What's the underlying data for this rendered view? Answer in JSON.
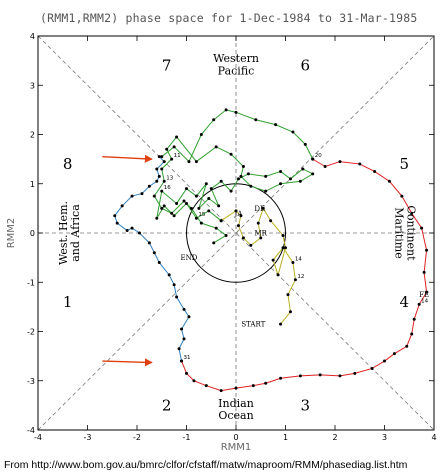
{
  "title": "(RMM1,RMM2) phase space for  1-Dec-1984 to 31-Mar-1985",
  "caption": "From http://www.bom.gov.au/bmrc/clfor/cfstaff/matw/maproom/RMM/phasediag.list.htm",
  "chart_data": {
    "type": "line",
    "xlabel": "RMM1",
    "ylabel": "RMM2",
    "xlim": [
      -4,
      4
    ],
    "ylim": [
      -4,
      4
    ],
    "xticks": [
      "-4",
      "-3",
      "-2",
      "-1",
      "0",
      "1",
      "2",
      "3",
      "4"
    ],
    "yticks": [
      "-4",
      "-3",
      "-2",
      "-1",
      "0",
      "1",
      "2",
      "3",
      "4"
    ],
    "unit_circle_radius": 1,
    "phases": [
      {
        "number": "1",
        "x": -3.4,
        "y": -1.4
      },
      {
        "number": "2",
        "x": -1.4,
        "y": -3.5
      },
      {
        "number": "3",
        "x": 1.4,
        "y": -3.5
      },
      {
        "number": "4",
        "x": 3.4,
        "y": -1.4
      },
      {
        "number": "5",
        "x": 3.4,
        "y": 1.4
      },
      {
        "number": "6",
        "x": 1.4,
        "y": 3.4
      },
      {
        "number": "7",
        "x": -1.4,
        "y": 3.4
      },
      {
        "number": "8",
        "x": -3.4,
        "y": 1.4
      }
    ],
    "regions": [
      {
        "name": "Western",
        "x": 0,
        "y": 3.55,
        "rotate": 0
      },
      {
        "name": "Pacific",
        "x": 0,
        "y": 3.3,
        "rotate": 0
      },
      {
        "name": "Indian",
        "x": 0,
        "y": -3.45,
        "rotate": 0
      },
      {
        "name": "Ocean",
        "x": 0,
        "y": -3.7,
        "rotate": 0
      },
      {
        "name": "West. Hem.",
        "x": -3.5,
        "y": 0,
        "rotate": -90
      },
      {
        "name": "and Africa",
        "x": -3.25,
        "y": 0,
        "rotate": -90
      },
      {
        "name": "Maritime",
        "x": 3.3,
        "y": 0,
        "rotate": 90
      },
      {
        "name": "Continent",
        "x": 3.55,
        "y": 0,
        "rotate": 90
      }
    ],
    "markers": [
      {
        "label": "START",
        "x": 0.35,
        "y": -1.9
      },
      {
        "label": "END",
        "x": -0.95,
        "y": -0.55
      }
    ],
    "month_labels": [
      {
        "label": "DE",
        "x": 0.48,
        "y": 0.45
      },
      {
        "label": "JA",
        "x": 0.05,
        "y": 0.35
      },
      {
        "label": "FE",
        "x": 3.8,
        "y": -1.3
      },
      {
        "label": "MR",
        "x": 0.5,
        "y": -0.05
      }
    ],
    "series": [
      {
        "color": "#b8b020",
        "x": [
          0.9,
          1.1,
          1.05,
          1.2,
          1.15,
          0.95,
          0.75,
          0.85,
          1.0,
          0.95,
          0.7,
          0.55,
          0.45,
          0.5,
          0.3,
          0.15,
          0.05,
          0.1,
          0.0,
          -0.3
        ],
        "y": [
          -1.85,
          -1.6,
          -1.25,
          -0.95,
          -0.6,
          -0.3,
          -0.55,
          -0.85,
          -0.3,
          -0.05,
          0.25,
          0.5,
          0.2,
          -0.1,
          -0.25,
          -0.1,
          0.15,
          0.35,
          0.45,
          0.25
        ],
        "labels": [
          "",
          "",
          "",
          "12",
          "14",
          "",
          "",
          "",
          "",
          "",
          "",
          "",
          "",
          "",
          "",
          "",
          "",
          "",
          "",
          ""
        ]
      },
      {
        "color": "#30a030",
        "x": [
          -0.3,
          -0.55,
          -0.8,
          -1.0,
          -1.25,
          -1.45,
          -1.6,
          -1.5,
          -1.2,
          -1.0,
          -0.8,
          -0.6,
          -0.75,
          -0.55,
          -0.35,
          -0.5,
          -0.3,
          -0.1,
          0.05,
          0.25,
          0.6,
          0.9,
          1.1,
          1.35,
          1.55,
          1.3,
          0.9,
          0.6,
          0.3,
          0.1,
          0.15,
          -0.1,
          -0.4,
          -0.8,
          -1.2,
          -1.4,
          -1.3,
          -1.5,
          -1.45,
          -1.65,
          -1.5,
          -1.3,
          -1.05,
          -0.9,
          -0.7,
          -0.4,
          -0.2,
          -0.45
        ],
        "y": [
          0.25,
          0.45,
          0.3,
          0.6,
          0.35,
          0.55,
          0.3,
          0.85,
          0.6,
          0.9,
          0.75,
          1.0,
          0.5,
          0.7,
          0.55,
          0.9,
          1.05,
          0.85,
          1.1,
          1.2,
          1.15,
          1.25,
          1.1,
          1.3,
          1.2,
          1.05,
          1.0,
          0.85,
          0.95,
          1.15,
          1.35,
          1.6,
          1.75,
          1.45,
          1.95,
          1.7,
          1.5,
          1.3,
          1.05,
          0.75,
          0.5,
          0.4,
          0.65,
          0.5,
          0.2,
          0.1,
          -0.05,
          -0.2
        ],
        "labels": [
          "",
          "",
          "15",
          "",
          "",
          "",
          "",
          "16",
          "",
          "",
          "",
          "",
          "",
          "",
          "",
          "",
          "",
          "",
          "",
          "",
          "",
          "",
          "",
          "",
          "",
          "",
          "",
          "",
          "",
          "",
          "",
          "",
          "",
          "",
          "",
          "",
          "11",
          "",
          "13",
          "",
          "",
          "",
          "",
          "",
          "",
          "",
          "",
          ""
        ]
      },
      {
        "color": "#30a030",
        "x": [
          -1.5,
          -1.25,
          -0.95,
          -0.7,
          -0.45,
          -0.2,
          0.0,
          0.4,
          0.8,
          1.15,
          1.4,
          1.55
        ],
        "y": [
          1.55,
          1.75,
          1.45,
          2.0,
          2.3,
          2.5,
          2.45,
          2.3,
          2.2,
          2.05,
          1.8,
          1.5
        ],
        "labels": [
          "",
          "",
          "",
          "",
          "",
          "",
          "",
          "",
          "",
          "",
          "",
          ""
        ]
      },
      {
        "color": "#e02020",
        "x": [
          1.55,
          1.8,
          2.1,
          2.5,
          2.8,
          3.1,
          3.35,
          3.55,
          3.75,
          3.85,
          3.8,
          3.85,
          3.7,
          3.6,
          3.55,
          3.45,
          3.2,
          3.0,
          2.75,
          2.4,
          2.1,
          1.7,
          1.3,
          0.9,
          0.6,
          0.35,
          0.0,
          -0.3,
          -0.6,
          -0.85,
          -1.0,
          -1.1
        ],
        "y": [
          1.5,
          1.35,
          1.45,
          1.4,
          1.25,
          1.05,
          0.75,
          0.4,
          0.1,
          -0.35,
          -0.8,
          -1.2,
          -1.45,
          -1.75,
          -2.05,
          -2.3,
          -2.45,
          -2.6,
          -2.75,
          -2.85,
          -2.9,
          -2.88,
          -2.9,
          -2.95,
          -3.05,
          -3.1,
          -3.15,
          -3.2,
          -3.1,
          -3.0,
          -2.85,
          -2.6
        ],
        "labels": [
          "20",
          "",
          "",
          "",
          "",
          "",
          "",
          "",
          "",
          "",
          "",
          "",
          "14",
          "",
          "",
          "",
          "",
          "",
          "",
          "",
          "",
          "",
          "",
          "",
          "",
          "",
          "",
          "",
          "",
          "",
          "",
          "31"
        ]
      },
      {
        "color": "#3080c0",
        "x": [
          -1.1,
          -1.15,
          -1.05,
          -1.1,
          -0.95,
          -1.05,
          -1.2,
          -1.25,
          -1.35,
          -1.55,
          -1.65,
          -1.75,
          -1.95,
          -2.1,
          -2.2,
          -2.4,
          -2.45,
          -2.3,
          -2.1,
          -1.9,
          -1.75,
          -1.6,
          -1.55,
          -1.6,
          -1.45,
          -1.55
        ],
        "y": [
          -2.6,
          -2.35,
          -2.15,
          -1.95,
          -1.7,
          -1.55,
          -1.3,
          -1.05,
          -0.85,
          -0.6,
          -0.4,
          -0.2,
          0.0,
          0.1,
          0.05,
          0.2,
          0.35,
          0.55,
          0.75,
          0.8,
          0.95,
          1.05,
          1.15,
          1.3,
          1.45,
          1.55
        ],
        "labels": [
          "",
          "",
          "",
          "",
          "",
          "",
          "",
          "",
          "",
          "",
          "",
          "",
          "",
          "",
          "",
          "",
          "",
          "",
          "",
          "",
          "",
          "",
          "",
          "",
          "",
          ""
        ]
      }
    ],
    "annotations": [
      {
        "type": "arrow",
        "color": "#e04010",
        "from": [
          -2.7,
          1.55
        ],
        "to": [
          -1.7,
          1.5
        ]
      },
      {
        "type": "arrow",
        "color": "#e04010",
        "from": [
          -2.7,
          -2.6
        ],
        "to": [
          -1.7,
          -2.63
        ]
      }
    ]
  }
}
